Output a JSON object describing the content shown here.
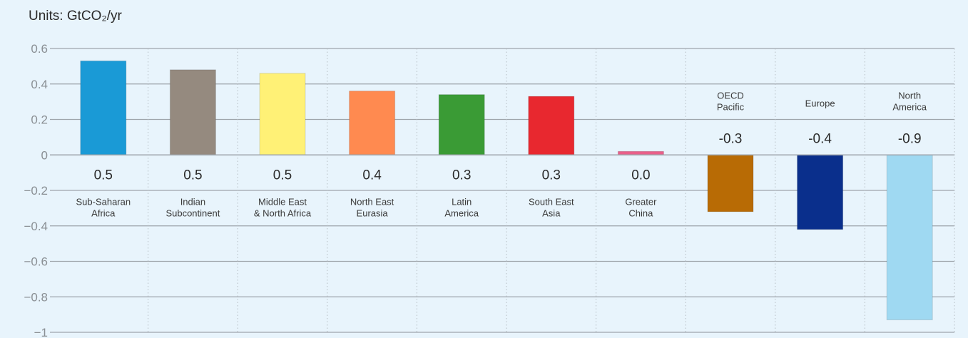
{
  "chart_data": {
    "type": "bar",
    "units": "Units: GtCO₂/yr",
    "title": "",
    "xlabel": "",
    "ylabel": "",
    "ylim": [
      -1,
      0.6
    ],
    "yticks": [
      {
        "value": 0.6,
        "label": "0.6"
      },
      {
        "value": 0.4,
        "label": "0.4"
      },
      {
        "value": 0.2,
        "label": "0.2"
      },
      {
        "value": 0,
        "label": "0"
      },
      {
        "value": -0.2,
        "label": "−0.2"
      },
      {
        "value": -0.4,
        "label": "−0.4"
      },
      {
        "value": -0.6,
        "label": "−0.6"
      },
      {
        "value": -0.8,
        "label": "−0.8"
      },
      {
        "value": -1,
        "label": "−1"
      }
    ],
    "grid": true,
    "categories": [
      {
        "lines": [
          "Sub-Saharan",
          "Africa"
        ],
        "value": 0.53,
        "label": "0.5",
        "color": "#1a9ad6"
      },
      {
        "lines": [
          "Indian",
          "Subcontinent"
        ],
        "value": 0.48,
        "label": "0.5",
        "color": "#958a7f"
      },
      {
        "lines": [
          "Middle East",
          "& North Africa"
        ],
        "value": 0.46,
        "label": "0.5",
        "color": "#fff176"
      },
      {
        "lines": [
          "North East",
          "Eurasia"
        ],
        "value": 0.36,
        "label": "0.4",
        "color": "#ff8a50"
      },
      {
        "lines": [
          "Latin",
          "America"
        ],
        "value": 0.34,
        "label": "0.3",
        "color": "#3a9b35"
      },
      {
        "lines": [
          "South East",
          "Asia"
        ],
        "value": 0.33,
        "label": "0.3",
        "color": "#e8282f"
      },
      {
        "lines": [
          "Greater",
          "China"
        ],
        "value": 0.02,
        "label": "0.0",
        "color": "#e8608a"
      },
      {
        "lines": [
          "OECD",
          "Pacific"
        ],
        "value": -0.32,
        "label": "-0.3",
        "color": "#b86b05"
      },
      {
        "lines": [
          "Europe"
        ],
        "value": -0.42,
        "label": "-0.4",
        "color": "#0a2f8c"
      },
      {
        "lines": [
          "North",
          "America"
        ],
        "value": -0.93,
        "label": "-0.9",
        "color": "#9fd9f2"
      }
    ]
  }
}
